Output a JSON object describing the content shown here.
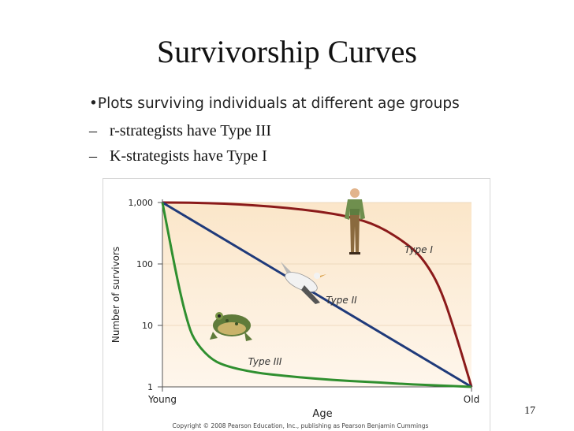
{
  "slide": {
    "title": "Survivorship Curves",
    "bullet_main": "•Plots surviving individuals at different age groups",
    "sub_bullets": [
      {
        "dash": "–",
        "text": "r-strategists have Type III"
      },
      {
        "dash": "–",
        "text": "K-strategists have Type I"
      }
    ],
    "page_number": "17"
  },
  "chart_data": {
    "type": "line",
    "ylabel": "Number of survivors",
    "xlabel": "Age",
    "yscale": "log",
    "ylim": [
      1,
      1000
    ],
    "y_ticks": [
      "1,000",
      "100",
      "10",
      "1"
    ],
    "y_tick_values": [
      1000,
      100,
      10,
      1
    ],
    "x_ticks": [
      "Young",
      "Old"
    ],
    "x_tick_values": [
      0,
      1
    ],
    "copyright": "Copyright © 2008 Pearson Education, Inc., publishing as Pearson Benjamin Cummings",
    "series": [
      {
        "name": "Type I",
        "color": "#8b1a1a",
        "x": [
          0,
          0.1,
          0.2,
          0.3,
          0.4,
          0.5,
          0.6,
          0.7,
          0.8,
          0.85,
          0.9,
          0.95,
          1.0
        ],
        "y": [
          1000,
          990,
          960,
          900,
          820,
          720,
          600,
          420,
          200,
          110,
          40,
          7,
          1
        ]
      },
      {
        "name": "Type II",
        "color": "#1f3a7a",
        "x": [
          0,
          1
        ],
        "y": [
          1000,
          1
        ]
      },
      {
        "name": "Type III",
        "color": "#2f8f2f",
        "x": [
          0,
          0.02,
          0.04,
          0.06,
          0.08,
          0.1,
          0.15,
          0.2,
          0.3,
          0.4,
          0.5,
          0.6,
          0.7,
          0.8,
          0.9,
          1.0
        ],
        "y": [
          1000,
          300,
          90,
          30,
          12,
          6,
          3,
          2.2,
          1.7,
          1.5,
          1.35,
          1.25,
          1.18,
          1.1,
          1.05,
          1
        ]
      }
    ]
  }
}
